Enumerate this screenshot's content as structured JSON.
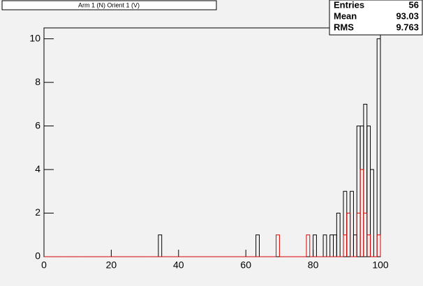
{
  "chart_data": {
    "type": "histogram",
    "title": "Arm 1 (N) Orient 1 (V)",
    "bins": [
      0,
      1,
      2,
      3,
      4,
      5,
      6,
      7,
      8,
      9,
      10,
      11,
      12,
      13,
      14,
      15,
      16,
      17,
      18,
      19,
      20,
      21,
      22,
      23,
      24,
      25,
      26,
      27,
      28,
      29,
      30,
      31,
      32,
      33,
      34,
      35,
      36,
      37,
      38,
      39,
      40,
      41,
      42,
      43,
      44,
      45,
      46,
      47,
      48,
      49,
      50,
      51,
      52,
      53,
      54,
      55,
      56,
      57,
      58,
      59,
      60,
      61,
      62,
      63,
      64,
      65,
      66,
      67,
      68,
      69,
      70,
      71,
      72,
      73,
      74,
      75,
      76,
      77,
      78,
      79,
      80,
      81,
      82,
      83,
      84,
      85,
      86,
      87,
      88,
      89,
      90,
      91,
      92,
      93,
      94,
      95,
      96,
      97,
      98,
      99,
      100
    ],
    "series": [
      {
        "color": "#000000",
        "values": [
          0,
          0,
          0,
          0,
          0,
          0,
          0,
          0,
          0,
          0,
          0,
          0,
          0,
          0,
          0,
          0,
          0,
          0,
          0,
          0,
          0,
          0,
          0,
          0,
          0,
          0,
          0,
          0,
          0,
          0,
          0,
          0,
          0,
          0,
          1,
          0,
          0,
          0,
          0,
          0,
          0,
          0,
          0,
          0,
          0,
          0,
          0,
          0,
          0,
          0,
          0,
          0,
          0,
          0,
          0,
          0,
          0,
          0,
          0,
          0,
          0,
          0,
          0,
          1,
          0,
          0,
          0,
          0,
          0,
          0,
          0,
          0,
          0,
          0,
          0,
          0,
          0,
          0,
          0,
          0,
          1,
          0,
          0,
          1,
          0,
          1,
          1,
          2,
          0,
          3,
          2,
          3,
          1,
          6,
          6,
          7,
          6,
          4,
          0,
          10
        ]
      },
      {
        "color": "#dd0000",
        "values": [
          0,
          0,
          0,
          0,
          0,
          0,
          0,
          0,
          0,
          0,
          0,
          0,
          0,
          0,
          0,
          0,
          0,
          0,
          0,
          0,
          0,
          0,
          0,
          0,
          0,
          0,
          0,
          0,
          0,
          0,
          0,
          0,
          0,
          0,
          0,
          0,
          0,
          0,
          0,
          0,
          0,
          0,
          0,
          0,
          0,
          0,
          0,
          0,
          0,
          0,
          0,
          0,
          0,
          0,
          0,
          0,
          0,
          0,
          0,
          0,
          0,
          0,
          0,
          0,
          0,
          0,
          0,
          0,
          0,
          1,
          0,
          0,
          0,
          0,
          0,
          0,
          0,
          0,
          1,
          0,
          0,
          0,
          0,
          0,
          0,
          0,
          0,
          0,
          0,
          1,
          2,
          0,
          0,
          2,
          4,
          2,
          1,
          0,
          0,
          1
        ]
      }
    ],
    "xlim": [
      0,
      100
    ],
    "xticks": [
      0,
      20,
      40,
      60,
      80,
      100
    ],
    "ylim": [
      0,
      10.5
    ],
    "yticks": [
      0,
      2,
      4,
      6,
      8,
      10
    ],
    "stats": [
      {
        "label": "Entries",
        "value": 56
      },
      {
        "label": "Mean",
        "value": 93.03
      },
      {
        "label": "RMS",
        "value": 9.763
      }
    ]
  }
}
